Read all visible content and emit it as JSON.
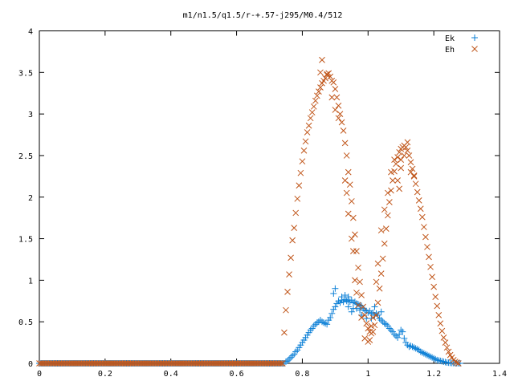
{
  "chart_data": {
    "type": "scatter",
    "title": "m1/n1.5/q1.5/r-+.57-j295/M0.4/512",
    "xlabel": "",
    "ylabel": "",
    "xlim": [
      0,
      1.4
    ],
    "ylim": [
      0,
      4
    ],
    "x_ticks": [
      "0",
      "0.2",
      "0.4",
      "0.6",
      "0.8",
      "1",
      "1.2",
      "1.4"
    ],
    "y_ticks": [
      "0",
      "0.5",
      "1",
      "1.5",
      "2",
      "2.5",
      "3",
      "3.5",
      "4"
    ],
    "grid": false,
    "legend_position": "top-right",
    "series": [
      {
        "name": "Ek",
        "marker": "plus",
        "color": "#0b7fd6",
        "points": [
          [
            0.745,
            0.0
          ],
          [
            0.75,
            0.02
          ],
          [
            0.755,
            0.03
          ],
          [
            0.76,
            0.05
          ],
          [
            0.765,
            0.07
          ],
          [
            0.77,
            0.09
          ],
          [
            0.775,
            0.11
          ],
          [
            0.78,
            0.14
          ],
          [
            0.785,
            0.16
          ],
          [
            0.79,
            0.19
          ],
          [
            0.795,
            0.22
          ],
          [
            0.8,
            0.25
          ],
          [
            0.805,
            0.28
          ],
          [
            0.81,
            0.31
          ],
          [
            0.815,
            0.34
          ],
          [
            0.82,
            0.37
          ],
          [
            0.825,
            0.4
          ],
          [
            0.83,
            0.42
          ],
          [
            0.835,
            0.45
          ],
          [
            0.84,
            0.47
          ],
          [
            0.845,
            0.49
          ],
          [
            0.85,
            0.5
          ],
          [
            0.855,
            0.52
          ],
          [
            0.86,
            0.5
          ],
          [
            0.865,
            0.49
          ],
          [
            0.87,
            0.48
          ],
          [
            0.875,
            0.47
          ],
          [
            0.88,
            0.52
          ],
          [
            0.885,
            0.55
          ],
          [
            0.89,
            0.6
          ],
          [
            0.895,
            0.65
          ],
          [
            0.9,
            0.68
          ],
          [
            0.905,
            0.72
          ],
          [
            0.91,
            0.75
          ],
          [
            0.915,
            0.73
          ],
          [
            0.92,
            0.76
          ],
          [
            0.925,
            0.74
          ],
          [
            0.93,
            0.77
          ],
          [
            0.935,
            0.75
          ],
          [
            0.94,
            0.76
          ],
          [
            0.945,
            0.74
          ],
          [
            0.95,
            0.76
          ],
          [
            0.955,
            0.73
          ],
          [
            0.96,
            0.74
          ],
          [
            0.965,
            0.72
          ],
          [
            0.97,
            0.71
          ],
          [
            0.975,
            0.7
          ],
          [
            0.98,
            0.69
          ],
          [
            0.985,
            0.66
          ],
          [
            0.99,
            0.64
          ],
          [
            0.995,
            0.63
          ],
          [
            1.0,
            0.61
          ],
          [
            1.005,
            0.63
          ],
          [
            1.01,
            0.6
          ],
          [
            1.015,
            0.61
          ],
          [
            1.02,
            0.58
          ],
          [
            1.025,
            0.6
          ],
          [
            1.03,
            0.58
          ],
          [
            1.035,
            0.54
          ],
          [
            1.04,
            0.52
          ],
          [
            1.045,
            0.5
          ],
          [
            1.05,
            0.48
          ],
          [
            1.055,
            0.47
          ],
          [
            1.06,
            0.45
          ],
          [
            1.065,
            0.42
          ],
          [
            1.07,
            0.4
          ],
          [
            1.075,
            0.38
          ],
          [
            1.08,
            0.35
          ],
          [
            1.085,
            0.33
          ],
          [
            1.09,
            0.31
          ],
          [
            1.095,
            0.35
          ],
          [
            1.1,
            0.4
          ],
          [
            1.105,
            0.38
          ],
          [
            1.11,
            0.3
          ],
          [
            1.115,
            0.25
          ],
          [
            1.12,
            0.22
          ],
          [
            1.125,
            0.2
          ],
          [
            1.13,
            0.21
          ],
          [
            1.135,
            0.2
          ],
          [
            1.14,
            0.19
          ],
          [
            1.145,
            0.18
          ],
          [
            1.15,
            0.17
          ],
          [
            1.155,
            0.16
          ],
          [
            1.16,
            0.14
          ],
          [
            1.165,
            0.13
          ],
          [
            1.17,
            0.12
          ],
          [
            1.175,
            0.11
          ],
          [
            1.18,
            0.1
          ],
          [
            1.185,
            0.09
          ],
          [
            1.19,
            0.08
          ],
          [
            1.195,
            0.07
          ],
          [
            1.2,
            0.06
          ],
          [
            1.205,
            0.05
          ],
          [
            1.21,
            0.04
          ],
          [
            1.215,
            0.035
          ],
          [
            1.22,
            0.03
          ],
          [
            1.225,
            0.025
          ],
          [
            1.23,
            0.02
          ],
          [
            1.235,
            0.015
          ],
          [
            1.24,
            0.01
          ],
          [
            1.245,
            0.008
          ],
          [
            1.25,
            0.006
          ],
          [
            1.255,
            0.004
          ],
          [
            1.26,
            0.003
          ],
          [
            1.265,
            0.002
          ],
          [
            1.27,
            0.001
          ],
          [
            1.275,
            0.0
          ],
          [
            1.28,
            0.0
          ],
          [
            0.9,
            0.9
          ],
          [
            0.895,
            0.84
          ],
          [
            0.92,
            0.8
          ],
          [
            0.93,
            0.82
          ],
          [
            0.94,
            0.8
          ],
          [
            0.965,
            0.66
          ],
          [
            0.98,
            0.58
          ],
          [
            0.995,
            0.54
          ],
          [
            1.01,
            0.54
          ],
          [
            1.02,
            0.68
          ],
          [
            0.94,
            0.68
          ],
          [
            0.95,
            0.62
          ],
          [
            0.955,
            0.66
          ],
          [
            0.975,
            0.64
          ],
          [
            1.04,
            0.62
          ]
        ]
      },
      {
        "name": "Eh",
        "marker": "cross",
        "color": "#c0561a",
        "points": [
          [
            0.745,
            0.37
          ],
          [
            0.75,
            0.64
          ],
          [
            0.755,
            0.86
          ],
          [
            0.76,
            1.07
          ],
          [
            0.765,
            1.27
          ],
          [
            0.77,
            1.48
          ],
          [
            0.775,
            1.63
          ],
          [
            0.78,
            1.81
          ],
          [
            0.785,
            1.98
          ],
          [
            0.79,
            2.14
          ],
          [
            0.795,
            2.29
          ],
          [
            0.8,
            2.43
          ],
          [
            0.805,
            2.56
          ],
          [
            0.81,
            2.67
          ],
          [
            0.815,
            2.78
          ],
          [
            0.82,
            2.86
          ],
          [
            0.825,
            2.95
          ],
          [
            0.83,
            3.02
          ],
          [
            0.835,
            3.09
          ],
          [
            0.84,
            3.16
          ],
          [
            0.845,
            3.22
          ],
          [
            0.85,
            3.27
          ],
          [
            0.855,
            3.32
          ],
          [
            0.86,
            3.37
          ],
          [
            0.865,
            3.4
          ],
          [
            0.87,
            3.43
          ],
          [
            0.875,
            3.47
          ],
          [
            0.88,
            3.49
          ],
          [
            0.885,
            3.45
          ],
          [
            0.89,
            3.4
          ],
          [
            0.895,
            3.38
          ],
          [
            0.9,
            3.3
          ],
          [
            0.905,
            3.2
          ],
          [
            0.91,
            3.1
          ],
          [
            0.915,
            3.0
          ],
          [
            0.92,
            2.9
          ],
          [
            0.925,
            2.8
          ],
          [
            0.93,
            2.65
          ],
          [
            0.935,
            2.5
          ],
          [
            0.94,
            2.3
          ],
          [
            0.945,
            2.15
          ],
          [
            0.95,
            1.95
          ],
          [
            0.955,
            1.75
          ],
          [
            0.96,
            1.55
          ],
          [
            0.965,
            1.35
          ],
          [
            0.97,
            1.15
          ],
          [
            0.975,
            0.98
          ],
          [
            0.98,
            0.82
          ],
          [
            0.985,
            0.68
          ],
          [
            0.99,
            0.58
          ],
          [
            0.995,
            0.48
          ],
          [
            1.0,
            0.42
          ],
          [
            1.005,
            0.38
          ],
          [
            1.01,
            0.36
          ],
          [
            1.015,
            0.38
          ],
          [
            1.02,
            0.46
          ],
          [
            1.025,
            0.58
          ],
          [
            1.03,
            0.73
          ],
          [
            1.035,
            0.9
          ],
          [
            1.04,
            1.08
          ],
          [
            1.045,
            1.26
          ],
          [
            1.05,
            1.44
          ],
          [
            1.055,
            1.62
          ],
          [
            1.06,
            1.78
          ],
          [
            1.065,
            1.94
          ],
          [
            1.07,
            2.08
          ],
          [
            1.075,
            2.2
          ],
          [
            1.08,
            2.31
          ],
          [
            1.085,
            2.4
          ],
          [
            1.09,
            2.48
          ],
          [
            1.095,
            2.54
          ],
          [
            1.1,
            2.58
          ],
          [
            1.105,
            2.6
          ],
          [
            1.11,
            2.62
          ],
          [
            1.115,
            2.6
          ],
          [
            1.12,
            2.56
          ],
          [
            1.125,
            2.5
          ],
          [
            1.13,
            2.42
          ],
          [
            1.135,
            2.34
          ],
          [
            1.14,
            2.26
          ],
          [
            1.145,
            2.16
          ],
          [
            1.15,
            2.06
          ],
          [
            1.155,
            1.96
          ],
          [
            1.16,
            1.86
          ],
          [
            1.165,
            1.76
          ],
          [
            1.17,
            1.64
          ],
          [
            1.175,
            1.52
          ],
          [
            1.18,
            1.4
          ],
          [
            1.185,
            1.28
          ],
          [
            1.19,
            1.16
          ],
          [
            1.195,
            1.04
          ],
          [
            1.2,
            0.92
          ],
          [
            1.205,
            0.8
          ],
          [
            1.21,
            0.69
          ],
          [
            1.215,
            0.58
          ],
          [
            1.22,
            0.48
          ],
          [
            1.225,
            0.39
          ],
          [
            1.23,
            0.31
          ],
          [
            1.235,
            0.25
          ],
          [
            1.24,
            0.19
          ],
          [
            1.245,
            0.14
          ],
          [
            1.25,
            0.1
          ],
          [
            1.255,
            0.07
          ],
          [
            1.26,
            0.04
          ],
          [
            1.265,
            0.02
          ],
          [
            1.27,
            0.01
          ],
          [
            1.275,
            0.0
          ],
          [
            0.86,
            3.65
          ],
          [
            0.855,
            3.5
          ],
          [
            0.875,
            3.48
          ],
          [
            0.89,
            3.2
          ],
          [
            0.9,
            3.05
          ],
          [
            0.91,
            2.95
          ],
          [
            0.93,
            2.2
          ],
          [
            0.935,
            2.05
          ],
          [
            0.95,
            1.5
          ],
          [
            0.955,
            1.35
          ],
          [
            0.94,
            1.8
          ],
          [
            0.96,
            1.0
          ],
          [
            0.965,
            0.85
          ],
          [
            0.97,
            0.7
          ],
          [
            0.98,
            0.55
          ],
          [
            0.99,
            0.3
          ],
          [
            1.0,
            0.26
          ],
          [
            1.005,
            0.28
          ],
          [
            1.01,
            0.45
          ],
          [
            1.015,
            0.55
          ],
          [
            1.025,
            0.98
          ],
          [
            1.03,
            1.2
          ],
          [
            1.04,
            1.6
          ],
          [
            1.05,
            1.85
          ],
          [
            1.06,
            2.05
          ],
          [
            1.07,
            2.3
          ],
          [
            1.08,
            2.45
          ],
          [
            1.09,
            2.2
          ],
          [
            1.1,
            2.35
          ],
          [
            1.11,
            2.5
          ],
          [
            1.12,
            2.66
          ],
          [
            1.13,
            2.3
          ],
          [
            1.14,
            2.25
          ],
          [
            1.1,
            2.45
          ],
          [
            1.095,
            2.1
          ]
        ]
      }
    ]
  }
}
